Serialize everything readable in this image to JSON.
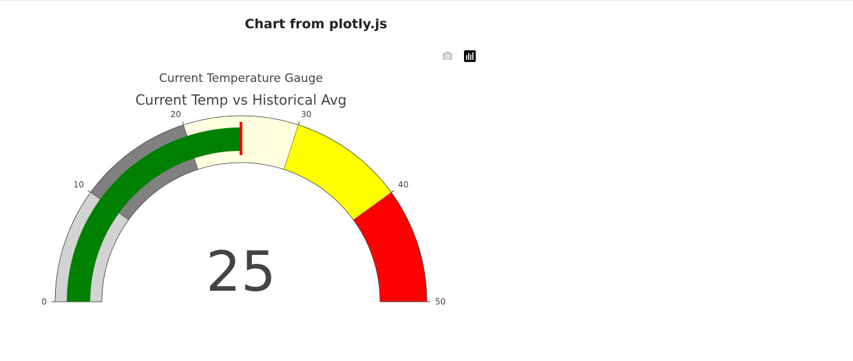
{
  "page": {
    "heading": "Chart from plotly.js"
  },
  "modebar": {
    "buttons": [
      {
        "icon": "camera-icon"
      },
      {
        "icon": "plotly-logo-icon"
      }
    ]
  },
  "chart_data": {
    "type": "gauge",
    "title": "Current Temperature Gauge",
    "indicator_title": "Current Temp vs Historical Avg",
    "value": 25,
    "value_display": "25",
    "range": [
      0,
      50
    ],
    "ticks": [
      0,
      10,
      20,
      30,
      40,
      50
    ],
    "tick_labels": [
      "0",
      "10",
      "20",
      "30",
      "40",
      "50"
    ],
    "bar_color": "#008000",
    "threshold": {
      "value": 25,
      "color": "#ff0000"
    },
    "steps": [
      {
        "range": [
          0,
          10
        ],
        "color": "#d3d3d3"
      },
      {
        "range": [
          10,
          20
        ],
        "color": "#808080"
      },
      {
        "range": [
          20,
          30
        ],
        "color": "#ffffe0"
      },
      {
        "range": [
          30,
          40
        ],
        "color": "#ffff00"
      },
      {
        "range": [
          40,
          50
        ],
        "color": "#ff0000"
      }
    ]
  }
}
